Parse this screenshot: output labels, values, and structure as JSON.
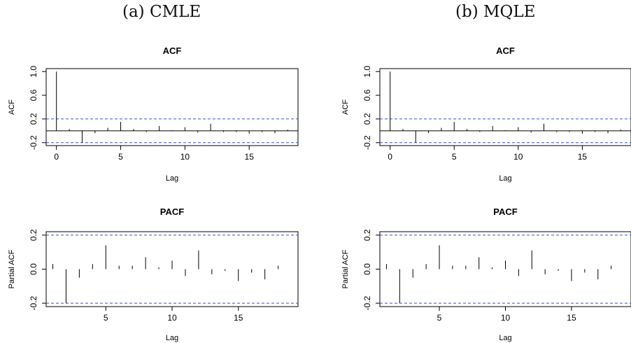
{
  "panels": [
    {
      "caption": "(a) CMLE"
    },
    {
      "caption": "(b) MQLE"
    }
  ],
  "colors": {
    "axis": "#000000",
    "ci": "#3b4fd8"
  },
  "chart_data": [
    {
      "type": "bar",
      "panel": "(a) CMLE",
      "title": "ACF",
      "xlabel": "Lag",
      "ylabel": "ACF",
      "xlim": [
        -0.8,
        18.8
      ],
      "ylim": [
        -0.25,
        1.05
      ],
      "xticks": [
        0,
        5,
        10,
        15
      ],
      "yticks": [
        -0.2,
        0.2,
        0.6,
        1.0
      ],
      "ytick_labels": [
        "-0.2",
        "0.2",
        "0.6",
        "1.0"
      ],
      "ci": 0.2,
      "zero_line": true,
      "x": [
        0,
        1,
        2,
        3,
        4,
        5,
        6,
        7,
        8,
        9,
        10,
        11,
        12,
        13,
        14,
        15,
        16,
        17,
        18
      ],
      "values": [
        1.0,
        0.03,
        -0.2,
        -0.04,
        0.05,
        0.15,
        0.03,
        -0.02,
        0.08,
        0.01,
        0.06,
        -0.03,
        0.12,
        -0.02,
        -0.02,
        -0.05,
        -0.02,
        -0.04,
        0.02
      ]
    },
    {
      "type": "bar",
      "panel": "(a) CMLE",
      "title": "PACF",
      "xlabel": "Lag",
      "ylabel": "Partial ACF",
      "xlim": [
        0.5,
        19.5
      ],
      "ylim": [
        -0.22,
        0.22
      ],
      "xticks": [
        5,
        10,
        15
      ],
      "yticks": [
        -0.2,
        0.0,
        0.2
      ],
      "ytick_labels": [
        "-0.2",
        "0.0",
        "0.2"
      ],
      "ci": 0.2,
      "zero_line": false,
      "x": [
        1,
        2,
        3,
        4,
        5,
        6,
        7,
        8,
        9,
        10,
        11,
        12,
        13,
        14,
        15,
        16,
        17,
        18,
        19
      ],
      "values": [
        0.03,
        -0.2,
        -0.05,
        0.03,
        0.14,
        0.02,
        0.02,
        0.07,
        0.01,
        0.05,
        -0.04,
        0.11,
        -0.03,
        -0.01,
        -0.07,
        -0.02,
        -0.06,
        0.02,
        0.0
      ]
    },
    {
      "type": "bar",
      "panel": "(b) MQLE",
      "title": "ACF",
      "xlabel": "Lag",
      "ylabel": "ACF",
      "xlim": [
        -0.8,
        18.8
      ],
      "ylim": [
        -0.25,
        1.05
      ],
      "xticks": [
        0,
        5,
        10,
        15
      ],
      "yticks": [
        -0.2,
        0.2,
        0.6,
        1.0
      ],
      "ytick_labels": [
        "-0.2",
        "0.2",
        "0.6",
        "1.0"
      ],
      "ci": 0.2,
      "zero_line": true,
      "x": [
        0,
        1,
        2,
        3,
        4,
        5,
        6,
        7,
        8,
        9,
        10,
        11,
        12,
        13,
        14,
        15,
        16,
        17,
        18
      ],
      "values": [
        1.0,
        0.03,
        -0.2,
        -0.04,
        0.05,
        0.15,
        0.03,
        -0.02,
        0.08,
        0.01,
        0.06,
        -0.03,
        0.12,
        -0.02,
        -0.02,
        -0.05,
        -0.02,
        -0.04,
        0.02
      ]
    },
    {
      "type": "bar",
      "panel": "(b) MQLE",
      "title": "PACF",
      "xlabel": "Lag",
      "ylabel": "Partial ACF",
      "xlim": [
        0.5,
        19.5
      ],
      "ylim": [
        -0.22,
        0.22
      ],
      "xticks": [
        5,
        10,
        15
      ],
      "yticks": [
        -0.2,
        0.0,
        0.2
      ],
      "ytick_labels": [
        "-0.2",
        "0.0",
        "0.2"
      ],
      "ci": 0.2,
      "zero_line": false,
      "x": [
        1,
        2,
        3,
        4,
        5,
        6,
        7,
        8,
        9,
        10,
        11,
        12,
        13,
        14,
        15,
        16,
        17,
        18,
        19
      ],
      "values": [
        0.03,
        -0.2,
        -0.05,
        0.03,
        0.14,
        0.02,
        0.02,
        0.07,
        0.01,
        0.05,
        -0.04,
        0.11,
        -0.03,
        -0.01,
        -0.07,
        -0.02,
        -0.06,
        0.02,
        0.0
      ]
    }
  ]
}
